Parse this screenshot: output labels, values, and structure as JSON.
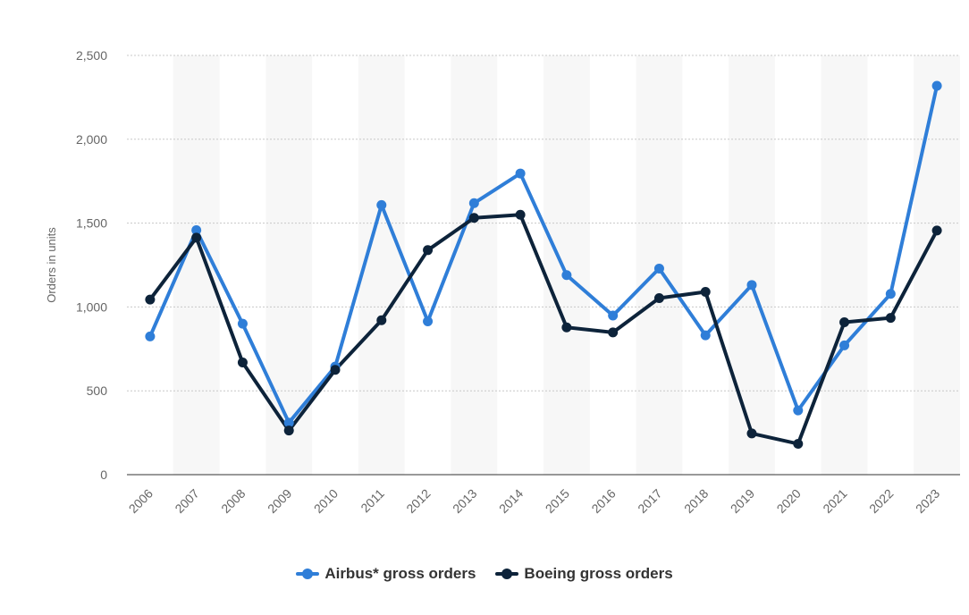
{
  "chart_data": {
    "type": "line",
    "title": "",
    "xlabel": "",
    "ylabel": "Orders in units",
    "categories": [
      "2006",
      "2007",
      "2008",
      "2009",
      "2010",
      "2011",
      "2012",
      "2013",
      "2014",
      "2015",
      "2016",
      "2017",
      "2018",
      "2019",
      "2020",
      "2021",
      "2022",
      "2023"
    ],
    "y_ticks": [
      "0",
      "500",
      "1,000",
      "1,500",
      "2,000",
      "2,500"
    ],
    "y_tick_values": [
      0,
      500,
      1000,
      1500,
      2000,
      2500
    ],
    "ylim": [
      0,
      2500
    ],
    "grid": true,
    "legend_position": "bottom-center",
    "series": [
      {
        "name": "Airbus* gross orders",
        "color": "#2f7ed8",
        "values": [
          824,
          1458,
          900,
          310,
          644,
          1608,
          914,
          1619,
          1796,
          1190,
          949,
          1229,
          831,
          1131,
          383,
          771,
          1078,
          2319
        ]
      },
      {
        "name": "Boeing gross orders",
        "color": "#0d233a",
        "values": [
          1044,
          1413,
          669,
          263,
          625,
          921,
          1339,
          1531,
          1550,
          878,
          848,
          1053,
          1090,
          246,
          184,
          909,
          935,
          1456
        ]
      }
    ]
  }
}
